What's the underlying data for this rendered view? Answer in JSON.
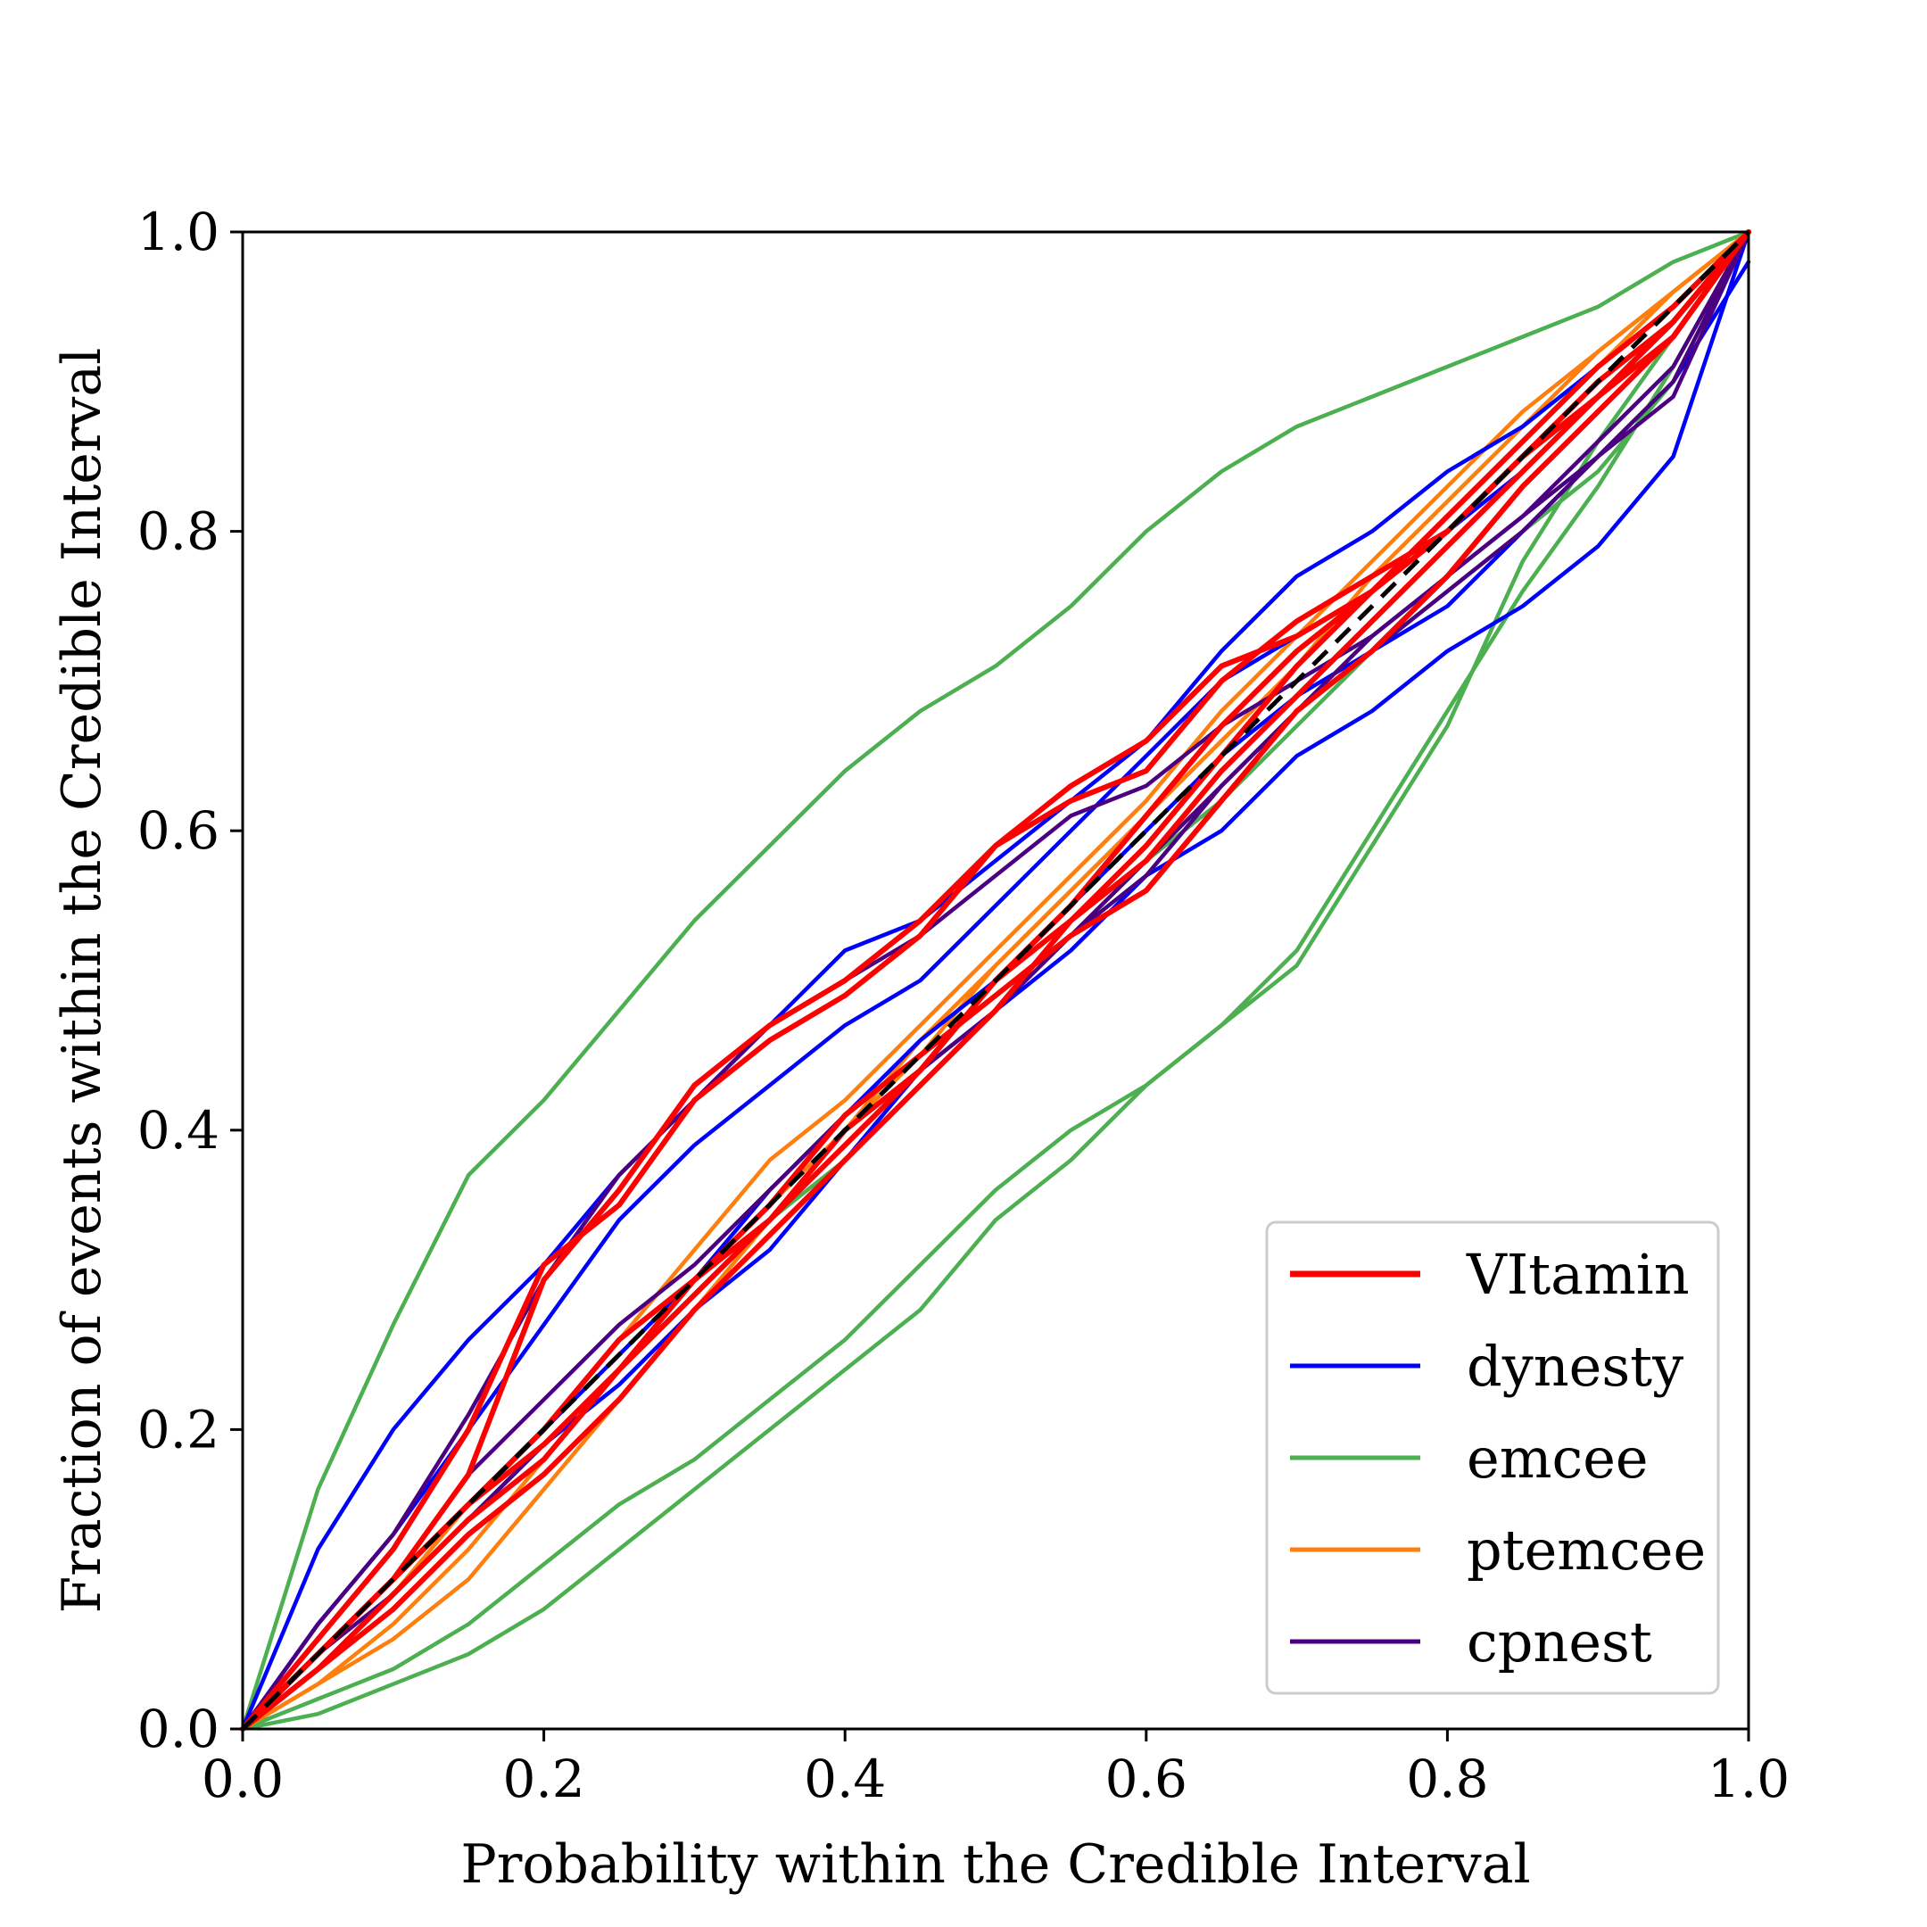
{
  "chart_data": {
    "type": "line",
    "title": "",
    "xlabel": "Probability within the Credible Interval",
    "ylabel": "Fraction of events within the Credible Interval",
    "xlim": [
      0.0,
      1.0
    ],
    "ylim": [
      0.0,
      1.0
    ],
    "xticks": [
      "0.0",
      "0.2",
      "0.4",
      "0.6",
      "0.8",
      "1.0"
    ],
    "yticks": [
      "0.0",
      "0.2",
      "0.4",
      "0.6",
      "0.8",
      "1.0"
    ],
    "grid": false,
    "legend_position": "bottom-right",
    "legend": [
      {
        "name": "VItamin",
        "color": "#ff0000"
      },
      {
        "name": "dynesty",
        "color": "#0000ff"
      },
      {
        "name": "emcee",
        "color": "#4caf50"
      },
      {
        "name": "ptemcee",
        "color": "#ff7f0e"
      },
      {
        "name": "cpnest",
        "color": "#4b0082"
      }
    ],
    "reference_line": {
      "x": [
        0,
        1
      ],
      "y": [
        0,
        1
      ],
      "color": "#000000",
      "style": "dashed"
    },
    "series": [
      {
        "group": "VItamin",
        "color": "#ff0000",
        "x": [
          0,
          0.05,
          0.1,
          0.15,
          0.2,
          0.25,
          0.3,
          0.35,
          0.4,
          0.45,
          0.5,
          0.55,
          0.6,
          0.65,
          0.7,
          0.75,
          0.8,
          0.85,
          0.9,
          0.95,
          1
        ],
        "y": [
          0,
          0.05,
          0.1,
          0.17,
          0.3,
          0.36,
          0.43,
          0.47,
          0.5,
          0.54,
          0.59,
          0.63,
          0.66,
          0.71,
          0.73,
          0.76,
          0.8,
          0.85,
          0.89,
          0.94,
          1
        ]
      },
      {
        "group": "VItamin",
        "color": "#ff0000",
        "x": [
          0,
          0.05,
          0.1,
          0.15,
          0.2,
          0.25,
          0.3,
          0.35,
          0.4,
          0.45,
          0.5,
          0.55,
          0.6,
          0.65,
          0.7,
          0.75,
          0.8,
          0.85,
          0.9,
          0.95,
          1
        ],
        "y": [
          0,
          0.06,
          0.12,
          0.2,
          0.31,
          0.35,
          0.42,
          0.46,
          0.49,
          0.53,
          0.59,
          0.62,
          0.64,
          0.7,
          0.74,
          0.77,
          0.8,
          0.85,
          0.89,
          0.93,
          1
        ]
      },
      {
        "group": "VItamin",
        "color": "#ff0000",
        "x": [
          0,
          0.05,
          0.1,
          0.15,
          0.2,
          0.25,
          0.3,
          0.35,
          0.4,
          0.45,
          0.5,
          0.55,
          0.6,
          0.65,
          0.7,
          0.75,
          0.8,
          0.85,
          0.9,
          0.95,
          1
        ],
        "y": [
          0,
          0.04,
          0.09,
          0.14,
          0.18,
          0.24,
          0.29,
          0.34,
          0.4,
          0.44,
          0.5,
          0.54,
          0.58,
          0.64,
          0.69,
          0.74,
          0.79,
          0.84,
          0.89,
          0.94,
          1
        ]
      },
      {
        "group": "VItamin",
        "color": "#ff0000",
        "x": [
          0,
          0.05,
          0.1,
          0.15,
          0.2,
          0.25,
          0.3,
          0.35,
          0.4,
          0.45,
          0.5,
          0.55,
          0.6,
          0.65,
          0.7,
          0.75,
          0.8,
          0.85,
          0.9,
          0.95,
          1
        ],
        "y": [
          0,
          0.05,
          0.1,
          0.15,
          0.2,
          0.26,
          0.3,
          0.35,
          0.41,
          0.45,
          0.49,
          0.53,
          0.56,
          0.62,
          0.68,
          0.72,
          0.77,
          0.83,
          0.88,
          0.93,
          1
        ]
      },
      {
        "group": "VItamin",
        "color": "#ff0000",
        "x": [
          0,
          0.05,
          0.1,
          0.15,
          0.2,
          0.25,
          0.3,
          0.35,
          0.4,
          0.45,
          0.5,
          0.55,
          0.6,
          0.65,
          0.7,
          0.75,
          0.8,
          0.85,
          0.9,
          0.95,
          1
        ],
        "y": [
          0,
          0.04,
          0.08,
          0.13,
          0.17,
          0.22,
          0.28,
          0.33,
          0.38,
          0.43,
          0.48,
          0.54,
          0.59,
          0.65,
          0.71,
          0.76,
          0.8,
          0.85,
          0.9,
          0.94,
          1
        ]
      },
      {
        "group": "VItamin",
        "color": "#ff0000",
        "x": [
          0,
          0.05,
          0.1,
          0.15,
          0.2,
          0.25,
          0.3,
          0.35,
          0.4,
          0.45,
          0.5,
          0.55,
          0.6,
          0.65,
          0.7,
          0.75,
          0.8,
          0.85,
          0.9,
          0.95,
          1
        ],
        "y": [
          0,
          0.05,
          0.1,
          0.15,
          0.19,
          0.24,
          0.3,
          0.34,
          0.39,
          0.44,
          0.5,
          0.55,
          0.61,
          0.67,
          0.72,
          0.76,
          0.81,
          0.86,
          0.91,
          0.95,
          1
        ]
      },
      {
        "group": "dynesty",
        "color": "#0000ff",
        "x": [
          0,
          0.05,
          0.1,
          0.15,
          0.2,
          0.25,
          0.3,
          0.35,
          0.4,
          0.45,
          0.5,
          0.55,
          0.6,
          0.65,
          0.7,
          0.75,
          0.8,
          0.85,
          0.9,
          0.95,
          1
        ],
        "y": [
          0,
          0.12,
          0.2,
          0.26,
          0.31,
          0.37,
          0.42,
          0.47,
          0.52,
          0.54,
          0.58,
          0.62,
          0.66,
          0.72,
          0.77,
          0.8,
          0.84,
          0.87,
          0.91,
          0.95,
          1
        ]
      },
      {
        "group": "dynesty",
        "color": "#0000ff",
        "x": [
          0,
          0.05,
          0.1,
          0.15,
          0.2,
          0.25,
          0.3,
          0.35,
          0.4,
          0.45,
          0.5,
          0.55,
          0.6,
          0.65,
          0.7,
          0.75,
          0.8,
          0.85,
          0.9,
          0.95,
          1
        ],
        "y": [
          0,
          0.07,
          0.13,
          0.2,
          0.27,
          0.34,
          0.39,
          0.43,
          0.47,
          0.5,
          0.55,
          0.6,
          0.65,
          0.7,
          0.73,
          0.76,
          0.8,
          0.84,
          0.89,
          0.93,
          1
        ]
      },
      {
        "group": "dynesty",
        "color": "#0000ff",
        "x": [
          0,
          0.05,
          0.1,
          0.15,
          0.2,
          0.25,
          0.3,
          0.35,
          0.4,
          0.45,
          0.5,
          0.55,
          0.6,
          0.65,
          0.7,
          0.75,
          0.8,
          0.85,
          0.9,
          0.95,
          1
        ],
        "y": [
          0,
          0.04,
          0.09,
          0.14,
          0.19,
          0.23,
          0.28,
          0.32,
          0.38,
          0.44,
          0.48,
          0.52,
          0.57,
          0.6,
          0.65,
          0.68,
          0.72,
          0.75,
          0.79,
          0.85,
          1
        ]
      },
      {
        "group": "dynesty",
        "color": "#0000ff",
        "x": [
          0,
          0.05,
          0.1,
          0.15,
          0.2,
          0.25,
          0.3,
          0.35,
          0.4,
          0.45,
          0.5,
          0.55,
          0.6,
          0.65,
          0.7,
          0.75,
          0.8,
          0.85,
          0.9,
          0.95,
          1
        ],
        "y": [
          0,
          0.05,
          0.1,
          0.15,
          0.2,
          0.25,
          0.3,
          0.36,
          0.41,
          0.46,
          0.5,
          0.55,
          0.6,
          0.65,
          0.69,
          0.72,
          0.75,
          0.8,
          0.85,
          0.9,
          0.98
        ]
      },
      {
        "group": "emcee",
        "color": "#4caf50",
        "x": [
          0,
          0.05,
          0.1,
          0.15,
          0.2,
          0.25,
          0.3,
          0.35,
          0.4,
          0.45,
          0.5,
          0.55,
          0.6,
          0.65,
          0.7,
          0.75,
          0.8,
          0.85,
          0.9,
          0.95,
          1
        ],
        "y": [
          0,
          0.16,
          0.27,
          0.37,
          0.42,
          0.48,
          0.54,
          0.59,
          0.64,
          0.68,
          0.71,
          0.75,
          0.8,
          0.84,
          0.87,
          0.89,
          0.91,
          0.93,
          0.95,
          0.98,
          1
        ]
      },
      {
        "group": "emcee",
        "color": "#4caf50",
        "x": [
          0,
          0.05,
          0.1,
          0.15,
          0.2,
          0.25,
          0.3,
          0.35,
          0.4,
          0.45,
          0.5,
          0.55,
          0.6,
          0.65,
          0.7,
          0.75,
          0.8,
          0.85,
          0.9,
          0.95,
          1
        ],
        "y": [
          0,
          0.01,
          0.03,
          0.05,
          0.08,
          0.12,
          0.16,
          0.2,
          0.24,
          0.28,
          0.34,
          0.38,
          0.43,
          0.47,
          0.51,
          0.59,
          0.67,
          0.78,
          0.86,
          0.93,
          1
        ]
      },
      {
        "group": "emcee",
        "color": "#4caf50",
        "x": [
          0,
          0.05,
          0.1,
          0.15,
          0.2,
          0.25,
          0.3,
          0.35,
          0.4,
          0.45,
          0.5,
          0.55,
          0.6,
          0.65,
          0.7,
          0.75,
          0.8,
          0.85,
          0.9,
          0.95,
          1
        ],
        "y": [
          0,
          0.02,
          0.04,
          0.07,
          0.11,
          0.15,
          0.18,
          0.22,
          0.26,
          0.31,
          0.36,
          0.4,
          0.43,
          0.47,
          0.52,
          0.6,
          0.68,
          0.76,
          0.83,
          0.91,
          1
        ]
      },
      {
        "group": "emcee",
        "color": "#4caf50",
        "x": [
          0,
          0.05,
          0.1,
          0.15,
          0.2,
          0.25,
          0.3,
          0.35,
          0.4,
          0.45,
          0.5,
          0.55,
          0.6,
          0.65,
          0.7,
          0.75,
          0.8,
          0.85,
          0.9,
          0.95,
          1
        ],
        "y": [
          0,
          0.04,
          0.09,
          0.14,
          0.19,
          0.24,
          0.29,
          0.34,
          0.38,
          0.43,
          0.48,
          0.53,
          0.58,
          0.62,
          0.67,
          0.72,
          0.76,
          0.8,
          0.84,
          0.9,
          1
        ]
      },
      {
        "group": "ptemcee",
        "color": "#ff7f0e",
        "x": [
          0,
          0.05,
          0.1,
          0.15,
          0.2,
          0.25,
          0.3,
          0.35,
          0.4,
          0.45,
          0.5,
          0.55,
          0.6,
          0.65,
          0.7,
          0.75,
          0.8,
          0.85,
          0.9,
          0.95,
          1
        ],
        "y": [
          0,
          0.04,
          0.09,
          0.15,
          0.2,
          0.26,
          0.32,
          0.38,
          0.42,
          0.47,
          0.52,
          0.57,
          0.62,
          0.68,
          0.73,
          0.78,
          0.83,
          0.88,
          0.92,
          0.96,
          1
        ]
      },
      {
        "group": "ptemcee",
        "color": "#ff7f0e",
        "x": [
          0,
          0.05,
          0.1,
          0.15,
          0.2,
          0.25,
          0.3,
          0.35,
          0.4,
          0.45,
          0.5,
          0.55,
          0.6,
          0.65,
          0.7,
          0.75,
          0.8,
          0.85,
          0.9,
          0.95,
          1
        ],
        "y": [
          0,
          0.03,
          0.07,
          0.12,
          0.18,
          0.24,
          0.3,
          0.35,
          0.4,
          0.45,
          0.51,
          0.56,
          0.61,
          0.66,
          0.71,
          0.77,
          0.82,
          0.87,
          0.92,
          0.96,
          1
        ]
      },
      {
        "group": "ptemcee",
        "color": "#ff7f0e",
        "x": [
          0,
          0.05,
          0.1,
          0.15,
          0.2,
          0.25,
          0.3,
          0.35,
          0.4,
          0.45,
          0.5,
          0.55,
          0.6,
          0.65,
          0.7,
          0.75,
          0.8,
          0.85,
          0.9,
          0.95,
          1
        ],
        "y": [
          0,
          0.03,
          0.06,
          0.1,
          0.16,
          0.22,
          0.28,
          0.34,
          0.4,
          0.46,
          0.51,
          0.56,
          0.61,
          0.66,
          0.71,
          0.76,
          0.81,
          0.86,
          0.91,
          0.96,
          1
        ]
      },
      {
        "group": "cpnest",
        "color": "#4b0082",
        "x": [
          0,
          0.05,
          0.1,
          0.15,
          0.2,
          0.25,
          0.3,
          0.35,
          0.4,
          0.45,
          0.5,
          0.55,
          0.6,
          0.65,
          0.7,
          0.75,
          0.8,
          0.85,
          0.9,
          0.95,
          1
        ],
        "y": [
          0,
          0.07,
          0.13,
          0.21,
          0.3,
          0.37,
          0.42,
          0.47,
          0.5,
          0.53,
          0.57,
          0.61,
          0.63,
          0.67,
          0.7,
          0.73,
          0.77,
          0.81,
          0.86,
          0.91,
          1
        ]
      },
      {
        "group": "cpnest",
        "color": "#4b0082",
        "x": [
          0,
          0.05,
          0.1,
          0.15,
          0.2,
          0.25,
          0.3,
          0.35,
          0.4,
          0.45,
          0.5,
          0.55,
          0.6,
          0.65,
          0.7,
          0.75,
          0.8,
          0.85,
          0.9,
          0.95,
          1
        ],
        "y": [
          0,
          0.05,
          0.1,
          0.17,
          0.22,
          0.27,
          0.31,
          0.36,
          0.41,
          0.45,
          0.49,
          0.53,
          0.57,
          0.63,
          0.68,
          0.73,
          0.77,
          0.81,
          0.85,
          0.9,
          1
        ]
      },
      {
        "group": "cpnest",
        "color": "#4b0082",
        "x": [
          0,
          0.05,
          0.1,
          0.15,
          0.2,
          0.25,
          0.3,
          0.35,
          0.4,
          0.45,
          0.5,
          0.55,
          0.6,
          0.65,
          0.7,
          0.75,
          0.8,
          0.85,
          0.9,
          0.95,
          1
        ],
        "y": [
          0,
          0.05,
          0.09,
          0.14,
          0.19,
          0.24,
          0.29,
          0.34,
          0.39,
          0.44,
          0.48,
          0.53,
          0.58,
          0.63,
          0.68,
          0.72,
          0.76,
          0.8,
          0.85,
          0.89,
          1
        ]
      }
    ]
  }
}
